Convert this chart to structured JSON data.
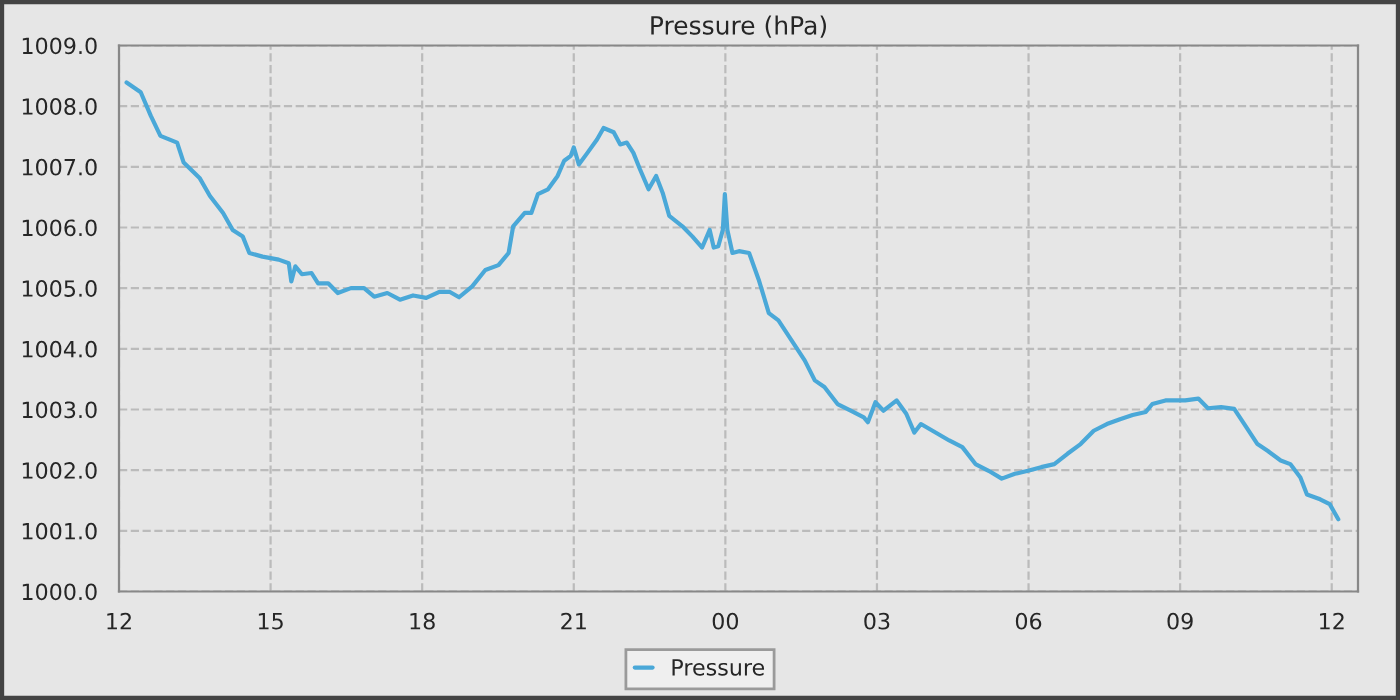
{
  "chart_data": {
    "type": "line",
    "title": "Pressure (hPa)",
    "x": [
      12.15,
      12.43,
      12.63,
      12.82,
      13.15,
      13.28,
      13.6,
      13.8,
      14.06,
      14.25,
      14.45,
      14.58,
      14.84,
      15.16,
      15.36,
      15.41,
      15.49,
      15.62,
      15.81,
      15.94,
      16.14,
      16.33,
      16.59,
      16.85,
      17.05,
      17.31,
      17.56,
      17.82,
      18.08,
      18.34,
      18.54,
      18.73,
      18.99,
      19.25,
      19.51,
      19.71,
      19.8,
      20.03,
      20.16,
      20.29,
      20.49,
      20.68,
      20.81,
      20.94,
      21.0,
      21.1,
      21.27,
      21.46,
      21.59,
      21.79,
      21.92,
      22.05,
      22.18,
      22.31,
      22.48,
      22.63,
      22.76,
      22.89,
      23.15,
      23.35,
      23.54,
      23.69,
      23.77,
      23.86,
      23.95,
      23.99,
      24.04,
      24.14,
      24.27,
      24.47,
      24.66,
      24.86,
      25.05,
      25.31,
      25.57,
      25.77,
      25.96,
      26.22,
      26.48,
      26.74,
      26.82,
      26.97,
      27.13,
      27.39,
      27.58,
      27.74,
      27.87,
      28.1,
      28.43,
      28.69,
      28.95,
      29.21,
      29.47,
      29.73,
      29.99,
      30.25,
      30.51,
      30.77,
      31.03,
      31.29,
      31.55,
      31.81,
      32.06,
      32.32,
      32.45,
      32.71,
      33.1,
      33.36,
      33.55,
      33.81,
      34.07,
      34.27,
      34.53,
      34.73,
      34.99,
      35.18,
      35.38,
      35.51,
      35.77,
      35.96,
      36.13
    ],
    "series": [
      {
        "name": "Pressure",
        "color": "#4aa8d8",
        "values": [
          1008.39,
          1008.23,
          1007.84,
          1007.51,
          1007.4,
          1007.07,
          1006.81,
          1006.52,
          1006.24,
          1005.96,
          1005.85,
          1005.58,
          1005.52,
          1005.47,
          1005.41,
          1005.11,
          1005.36,
          1005.23,
          1005.25,
          1005.08,
          1005.08,
          1004.92,
          1005.0,
          1005.0,
          1004.86,
          1004.92,
          1004.81,
          1004.88,
          1004.84,
          1004.94,
          1004.94,
          1004.85,
          1005.03,
          1005.3,
          1005.38,
          1005.58,
          1006.02,
          1006.24,
          1006.24,
          1006.55,
          1006.63,
          1006.85,
          1007.1,
          1007.18,
          1007.32,
          1007.04,
          1007.23,
          1007.45,
          1007.64,
          1007.57,
          1007.37,
          1007.4,
          1007.23,
          1006.96,
          1006.63,
          1006.85,
          1006.57,
          1006.19,
          1006.02,
          1005.85,
          1005.67,
          1005.96,
          1005.67,
          1005.69,
          1005.96,
          1006.55,
          1005.96,
          1005.58,
          1005.61,
          1005.58,
          1005.14,
          1004.59,
          1004.47,
          1004.14,
          1003.81,
          1003.48,
          1003.37,
          1003.09,
          1002.98,
          1002.87,
          1002.79,
          1003.12,
          1002.98,
          1003.15,
          1002.93,
          1002.62,
          1002.76,
          1002.65,
          1002.49,
          1002.38,
          1002.1,
          1001.99,
          1001.86,
          1001.94,
          1001.99,
          1002.05,
          1002.1,
          1002.27,
          1002.43,
          1002.65,
          1002.76,
          1002.84,
          1002.91,
          1002.96,
          1003.09,
          1003.15,
          1003.15,
          1003.18,
          1003.02,
          1003.04,
          1003.01,
          1002.76,
          1002.43,
          1002.32,
          1002.16,
          1002.1,
          1001.88,
          1001.6,
          1001.52,
          1001.44,
          1001.19
        ]
      }
    ],
    "xlim": [
      12,
      36.52
    ],
    "ylim": [
      1000,
      1009
    ],
    "xticks": [
      {
        "value": 12,
        "label": "12"
      },
      {
        "value": 15,
        "label": "15"
      },
      {
        "value": 18,
        "label": "18"
      },
      {
        "value": 21,
        "label": "21"
      },
      {
        "value": 24,
        "label": "00"
      },
      {
        "value": 27,
        "label": "03"
      },
      {
        "value": 30,
        "label": "06"
      },
      {
        "value": 33,
        "label": "09"
      },
      {
        "value": 36,
        "label": "12"
      }
    ],
    "yticks": [
      {
        "value": 1000,
        "label": "1000.0"
      },
      {
        "value": 1001,
        "label": "1001.0"
      },
      {
        "value": 1002,
        "label": "1002.0"
      },
      {
        "value": 1003,
        "label": "1003.0"
      },
      {
        "value": 1004,
        "label": "1004.0"
      },
      {
        "value": 1005,
        "label": "1005.0"
      },
      {
        "value": 1006,
        "label": "1006.0"
      },
      {
        "value": 1007,
        "label": "1007.0"
      },
      {
        "value": 1008,
        "label": "1008.0"
      },
      {
        "value": 1009,
        "label": "1009.0"
      }
    ],
    "grid": true,
    "legend": "bottom",
    "marker": "none",
    "line_style": "solid"
  }
}
